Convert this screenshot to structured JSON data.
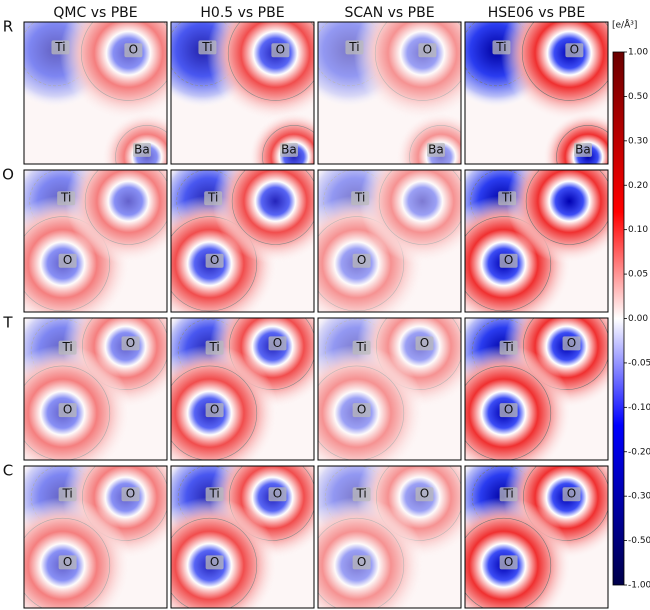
{
  "columns": [
    "QMC vs PBE",
    "H0.5 vs PBE",
    "SCAN vs PBE",
    "HSE06 vs PBE"
  ],
  "rows": [
    {
      "label": "R",
      "atoms": [
        "Ti",
        "O",
        "Ba"
      ]
    },
    {
      "label": "O",
      "atoms": [
        "Ti",
        "O"
      ]
    },
    {
      "label": "T",
      "atoms": [
        "Ti",
        "O",
        "O"
      ]
    },
    {
      "label": "C",
      "atoms": [
        "Ti",
        "O",
        "O"
      ]
    }
  ],
  "colorbar": {
    "unit": "[e/Å³]",
    "ticks": [
      {
        "value": 1,
        "label": "1.00"
      },
      {
        "value": 0.5,
        "label": "0.50"
      },
      {
        "value": 0.3,
        "label": "0.30"
      },
      {
        "value": 0.2,
        "label": "0.20"
      },
      {
        "value": 0.1,
        "label": "0.10"
      },
      {
        "value": 0.05,
        "label": "0.05"
      },
      {
        "value": 0,
        "label": "0.00"
      },
      {
        "value": -0.05,
        "label": "-0.05"
      },
      {
        "value": -0.1,
        "label": "-0.10"
      },
      {
        "value": -0.2,
        "label": "-0.20"
      },
      {
        "value": -0.3,
        "label": "-0.30"
      },
      {
        "value": -0.5,
        "label": "-0.50"
      },
      {
        "value": -1,
        "label": "-1.00"
      }
    ]
  }
}
